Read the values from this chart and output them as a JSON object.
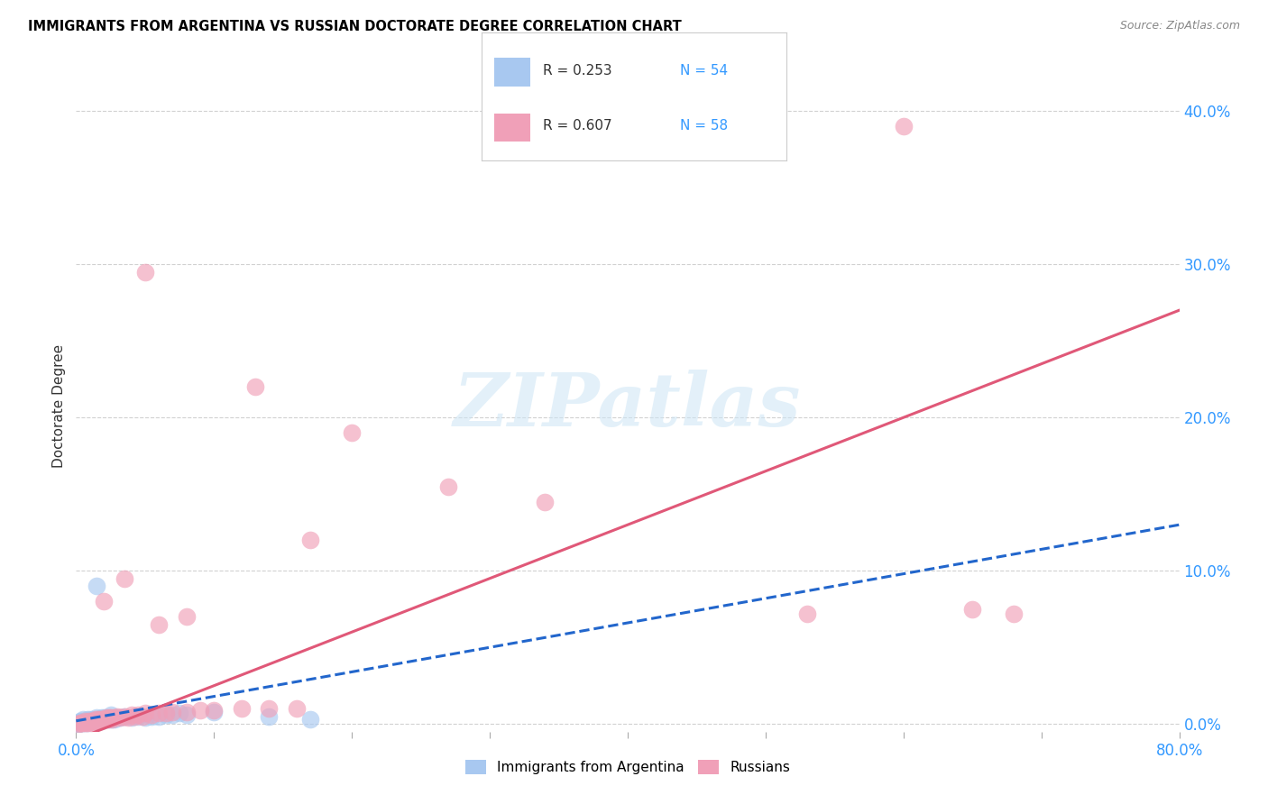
{
  "title": "IMMIGRANTS FROM ARGENTINA VS RUSSIAN DOCTORATE DEGREE CORRELATION CHART",
  "source": "Source: ZipAtlas.com",
  "ylabel": "Doctorate Degree",
  "xlim": [
    0.0,
    0.8
  ],
  "ylim": [
    -0.005,
    0.42
  ],
  "xticks": [
    0.0,
    0.1,
    0.2,
    0.3,
    0.4,
    0.5,
    0.6,
    0.7,
    0.8
  ],
  "xtick_labels_show": [
    "0.0%",
    "",
    "",
    "",
    "",
    "",
    "",
    "",
    "80.0%"
  ],
  "yticks": [
    0.0,
    0.1,
    0.2,
    0.3,
    0.4
  ],
  "ytick_labels": [
    "0.0%",
    "10.0%",
    "20.0%",
    "30.0%",
    "40.0%"
  ],
  "argentina_color": "#a8c8f0",
  "russian_color": "#f0a0b8",
  "argentina_line_color": "#2266cc",
  "russian_line_color": "#e05878",
  "argentina_R": 0.253,
  "argentina_N": 54,
  "russian_R": 0.607,
  "russian_N": 58,
  "legend_label_argentina": "Immigrants from Argentina",
  "legend_label_russian": "Russians",
  "watermark": "ZIPatlas",
  "argentina_points": [
    [
      0.001,
      0.0
    ],
    [
      0.001,
      0.001
    ],
    [
      0.002,
      0.0
    ],
    [
      0.002,
      0.001
    ],
    [
      0.003,
      0.001
    ],
    [
      0.003,
      0.002
    ],
    [
      0.004,
      0.001
    ],
    [
      0.004,
      0.002
    ],
    [
      0.005,
      0.001
    ],
    [
      0.005,
      0.003
    ],
    [
      0.006,
      0.001
    ],
    [
      0.006,
      0.002
    ],
    [
      0.007,
      0.002
    ],
    [
      0.008,
      0.001
    ],
    [
      0.008,
      0.003
    ],
    [
      0.009,
      0.002
    ],
    [
      0.01,
      0.002
    ],
    [
      0.01,
      0.003
    ],
    [
      0.011,
      0.002
    ],
    [
      0.012,
      0.003
    ],
    [
      0.013,
      0.002
    ],
    [
      0.014,
      0.003
    ],
    [
      0.015,
      0.002
    ],
    [
      0.015,
      0.004
    ],
    [
      0.016,
      0.003
    ],
    [
      0.017,
      0.003
    ],
    [
      0.018,
      0.002
    ],
    [
      0.019,
      0.004
    ],
    [
      0.02,
      0.003
    ],
    [
      0.021,
      0.004
    ],
    [
      0.022,
      0.003
    ],
    [
      0.023,
      0.004
    ],
    [
      0.024,
      0.003
    ],
    [
      0.025,
      0.004
    ],
    [
      0.026,
      0.003
    ],
    [
      0.027,
      0.004
    ],
    [
      0.028,
      0.003
    ],
    [
      0.03,
      0.004
    ],
    [
      0.032,
      0.004
    ],
    [
      0.035,
      0.005
    ],
    [
      0.04,
      0.004
    ],
    [
      0.045,
      0.005
    ],
    [
      0.05,
      0.004
    ],
    [
      0.055,
      0.005
    ],
    [
      0.06,
      0.005
    ],
    [
      0.065,
      0.006
    ],
    [
      0.07,
      0.006
    ],
    [
      0.075,
      0.007
    ],
    [
      0.08,
      0.006
    ],
    [
      0.1,
      0.008
    ],
    [
      0.015,
      0.09
    ],
    [
      0.14,
      0.005
    ],
    [
      0.17,
      0.003
    ],
    [
      0.025,
      0.006
    ]
  ],
  "russian_points": [
    [
      0.002,
      0.0
    ],
    [
      0.003,
      0.001
    ],
    [
      0.004,
      0.001
    ],
    [
      0.005,
      0.001
    ],
    [
      0.006,
      0.002
    ],
    [
      0.007,
      0.001
    ],
    [
      0.008,
      0.001
    ],
    [
      0.009,
      0.002
    ],
    [
      0.01,
      0.002
    ],
    [
      0.011,
      0.001
    ],
    [
      0.012,
      0.002
    ],
    [
      0.013,
      0.002
    ],
    [
      0.014,
      0.003
    ],
    [
      0.015,
      0.002
    ],
    [
      0.016,
      0.003
    ],
    [
      0.017,
      0.002
    ],
    [
      0.018,
      0.003
    ],
    [
      0.019,
      0.003
    ],
    [
      0.02,
      0.003
    ],
    [
      0.021,
      0.003
    ],
    [
      0.022,
      0.004
    ],
    [
      0.023,
      0.003
    ],
    [
      0.024,
      0.004
    ],
    [
      0.025,
      0.004
    ],
    [
      0.026,
      0.003
    ],
    [
      0.028,
      0.004
    ],
    [
      0.03,
      0.005
    ],
    [
      0.032,
      0.004
    ],
    [
      0.035,
      0.005
    ],
    [
      0.038,
      0.004
    ],
    [
      0.04,
      0.006
    ],
    [
      0.042,
      0.005
    ],
    [
      0.045,
      0.006
    ],
    [
      0.048,
      0.005
    ],
    [
      0.05,
      0.007
    ],
    [
      0.055,
      0.006
    ],
    [
      0.06,
      0.007
    ],
    [
      0.065,
      0.007
    ],
    [
      0.07,
      0.008
    ],
    [
      0.08,
      0.008
    ],
    [
      0.09,
      0.009
    ],
    [
      0.1,
      0.009
    ],
    [
      0.12,
      0.01
    ],
    [
      0.14,
      0.01
    ],
    [
      0.16,
      0.01
    ],
    [
      0.05,
      0.295
    ],
    [
      0.13,
      0.22
    ],
    [
      0.2,
      0.19
    ],
    [
      0.27,
      0.155
    ],
    [
      0.34,
      0.145
    ],
    [
      0.17,
      0.12
    ],
    [
      0.02,
      0.08
    ],
    [
      0.035,
      0.095
    ],
    [
      0.6,
      0.39
    ],
    [
      0.68,
      0.072
    ],
    [
      0.53,
      0.072
    ],
    [
      0.65,
      0.075
    ],
    [
      0.06,
      0.065
    ],
    [
      0.08,
      0.07
    ]
  ],
  "arg_line_x": [
    0.0,
    0.8
  ],
  "arg_line_y": [
    0.002,
    0.13
  ],
  "rus_line_x": [
    0.0,
    0.8
  ],
  "rus_line_y": [
    -0.01,
    0.27
  ]
}
